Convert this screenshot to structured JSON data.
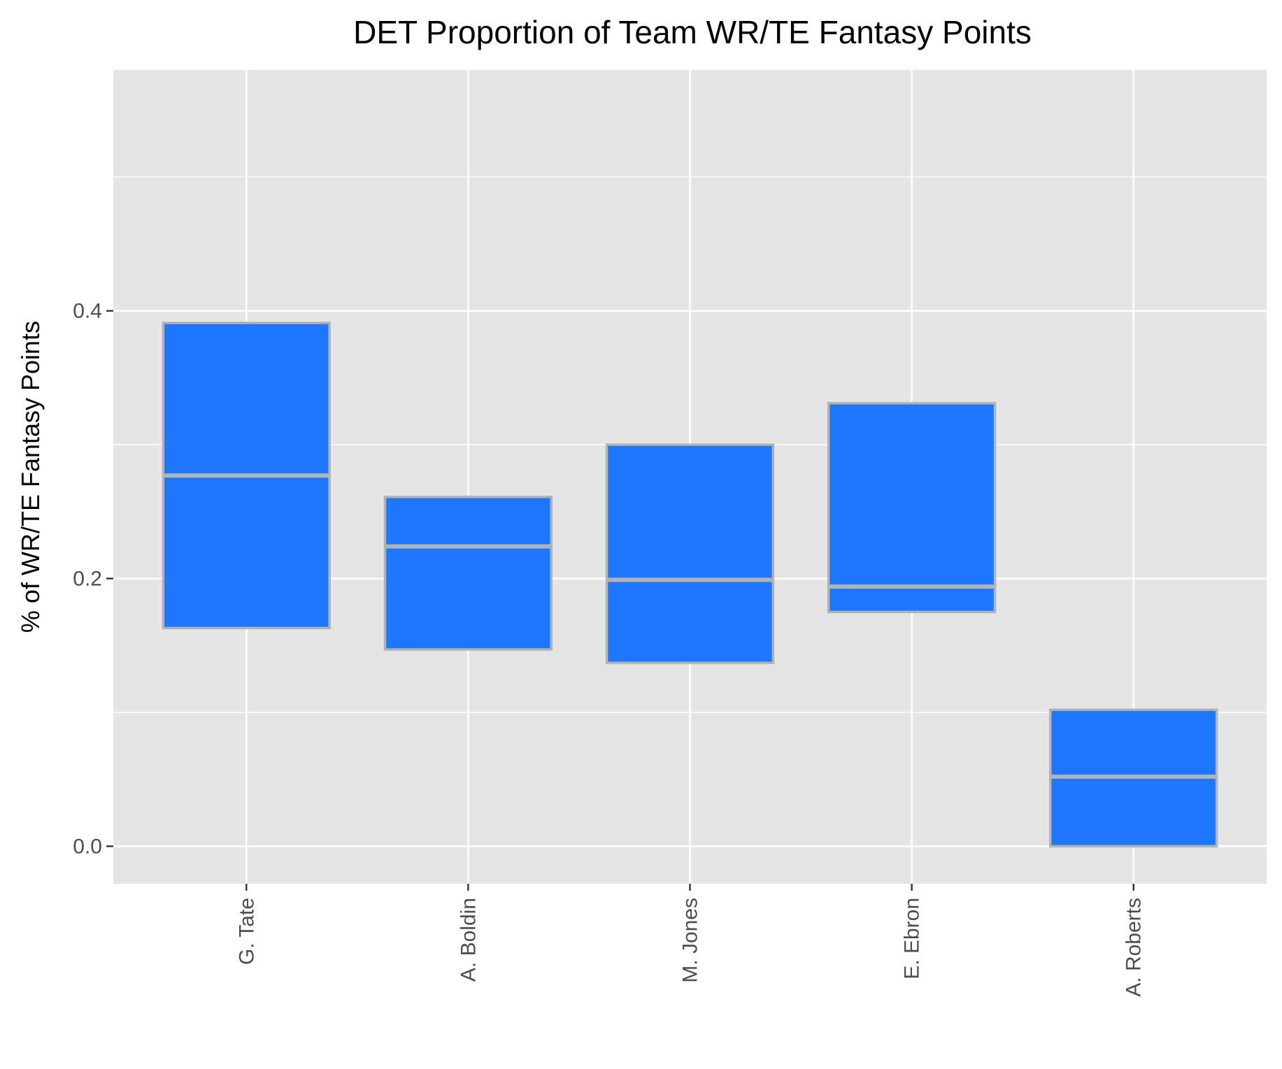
{
  "chart_data": {
    "type": "boxplot",
    "title": "DET Proportion of Team WR/TE Fantasy Points",
    "xlabel": "",
    "ylabel": "% of WR/TE Fantasy Points",
    "ylim": [
      -0.028,
      0.58
    ],
    "yticks": [
      0.0,
      0.2,
      0.4
    ],
    "ytick_labels": [
      "0.0",
      "0.2",
      "0.4"
    ],
    "categories": [
      "G. Tate",
      "A. Boldin",
      "M. Jones",
      "E. Ebron",
      "A. Roberts"
    ],
    "boxes": [
      {
        "name": "G. Tate",
        "lower": 0.163,
        "median": 0.277,
        "upper": 0.391
      },
      {
        "name": "A. Boldin",
        "lower": 0.147,
        "median": 0.224,
        "upper": 0.261
      },
      {
        "name": "M. Jones",
        "lower": 0.137,
        "median": 0.199,
        "upper": 0.3
      },
      {
        "name": "E. Ebron",
        "lower": 0.175,
        "median": 0.194,
        "upper": 0.331
      },
      {
        "name": "A. Roberts",
        "lower": 0.0,
        "median": 0.052,
        "upper": 0.102
      }
    ],
    "grid": true,
    "colors": {
      "panel": "#e5e5e5",
      "grid": "#ffffff",
      "box_fill": "#1e78ff",
      "box_stroke": "#b3b3b3",
      "tick": "#333333"
    }
  }
}
